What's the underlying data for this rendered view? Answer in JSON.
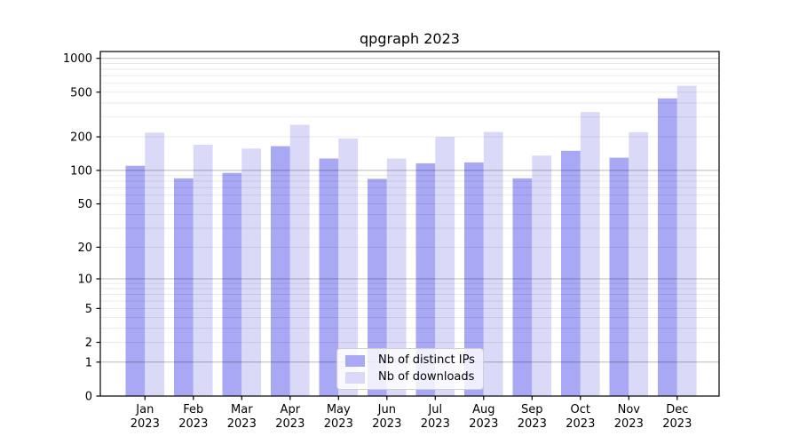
{
  "figure": {
    "title": "qpgraph 2023"
  },
  "chart_data": {
    "type": "bar",
    "title": "qpgraph 2023",
    "x_categories": [
      "Jan",
      "Feb",
      "Mar",
      "Apr",
      "May",
      "Jun",
      "Jul",
      "Aug",
      "Sep",
      "Oct",
      "Nov",
      "Dec"
    ],
    "x_year": "2023",
    "series": [
      {
        "name": "Nb of distinct IPs",
        "color": "#a8a8f5",
        "values": [
          110,
          85,
          95,
          165,
          128,
          84,
          116,
          118,
          85,
          150,
          130,
          440
        ]
      },
      {
        "name": "Nb of downloads",
        "color": "#dadaf8",
        "values": [
          218,
          170,
          157,
          256,
          193,
          128,
          200,
          221,
          136,
          332,
          220,
          570
        ]
      }
    ],
    "yscale": "log1p",
    "ylim": [
      0,
      1150
    ],
    "yticks": [
      0,
      1,
      2,
      5,
      10,
      20,
      50,
      100,
      200,
      500,
      1000
    ],
    "major_grid": [
      1,
      10,
      100,
      1000
    ],
    "grid": true,
    "legend_position": "lower center",
    "colors": {
      "major_grid": "rgba(0,0,0,0.28)",
      "minor_grid": "rgba(0,0,0,0.09)",
      "axis": "#000000",
      "background": "#ffffff"
    }
  }
}
